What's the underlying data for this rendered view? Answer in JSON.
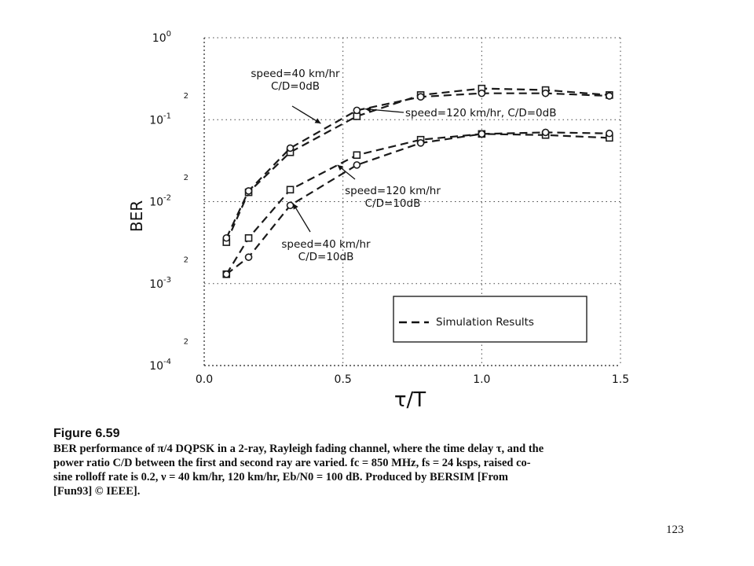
{
  "chart_data": {
    "type": "line",
    "xlabel": "τ/T",
    "ylabel": "BER",
    "xlim": [
      0,
      1.5
    ],
    "ylim_log10": [
      -4,
      0
    ],
    "y_scale": "log",
    "grid": true,
    "x_ticks": [
      0,
      0.5,
      1.0,
      1.5
    ],
    "x_tick_labels": [
      "0.0",
      "0.5",
      "1.0",
      "1.5"
    ],
    "y_ticks": [
      {
        "exp": 0,
        "base": "10",
        "sup": "0"
      },
      {
        "exp": -1,
        "base": "10",
        "sup": "-1"
      },
      {
        "exp": -2,
        "base": "10",
        "sup": "-2"
      },
      {
        "exp": -3,
        "base": "10",
        "sup": "-3"
      },
      {
        "exp": -4,
        "base": "10",
        "sup": "-4"
      }
    ],
    "minor_tick_label": "2",
    "series": [
      {
        "marker": "square",
        "x": [
          0.08,
          0.16,
          0.31,
          0.55,
          0.78,
          1.0,
          1.23,
          1.46
        ],
        "y": [
          0.0032,
          0.013,
          0.04,
          0.11,
          0.2,
          0.24,
          0.23,
          0.2
        ]
      },
      {
        "marker": "circle",
        "x": [
          0.08,
          0.16,
          0.31,
          0.55,
          0.78,
          1.0,
          1.23,
          1.46
        ],
        "y": [
          0.0036,
          0.0135,
          0.045,
          0.13,
          0.19,
          0.21,
          0.21,
          0.195
        ]
      },
      {
        "marker": "square",
        "x": [
          0.08,
          0.16,
          0.31,
          0.55,
          0.78,
          1.0,
          1.23,
          1.46
        ],
        "y": [
          0.0013,
          0.0036,
          0.014,
          0.037,
          0.057,
          0.067,
          0.065,
          0.06
        ]
      },
      {
        "marker": "circle",
        "x": [
          0.08,
          0.16,
          0.31,
          0.55,
          0.78,
          1.0,
          1.23,
          1.46
        ],
        "y": [
          0.0013,
          0.0021,
          0.009,
          0.028,
          0.052,
          0.067,
          0.07,
          0.068
        ]
      }
    ],
    "annotations": [
      {
        "lines": [
          "speed=40 km/hr",
          "C/D=0dB"
        ],
        "pointer_to": {
          "x": 0.42,
          "y": 0.09
        }
      },
      {
        "lines": [
          "speed=120 km/hr, C/D=0dB"
        ],
        "pointer_to": {
          "x": 0.58,
          "y": 0.135
        }
      },
      {
        "lines": [
          "speed=120 km/hr",
          "C/D=10dB"
        ],
        "pointer_to": {
          "x": 0.48,
          "y": 0.028
        }
      },
      {
        "lines": [
          "speed=40 km/hr",
          "C/D=10dB"
        ],
        "pointer_to": {
          "x": 0.32,
          "y": 0.0095
        }
      }
    ],
    "legend": {
      "label": "Simulation Results",
      "position": "bottom-right",
      "line_style": "dashed"
    }
  },
  "caption": {
    "title": "Figure 6.59",
    "lines": [
      "BER performance of π/4 DQPSK in a 2-ray, Rayleigh fading channel, where the time delay τ, and the",
      "power ratio C/D between the first and second ray are varied. fc = 850 MHz, fs = 24 ksps, raised co-",
      "sine rolloff rate is 0.2, ν = 40 km/hr, 120 km/hr, Eb/N0 = 100 dB. Produced by BERSIM [From",
      "[Fun93] © IEEE]."
    ]
  },
  "page_number": "123"
}
